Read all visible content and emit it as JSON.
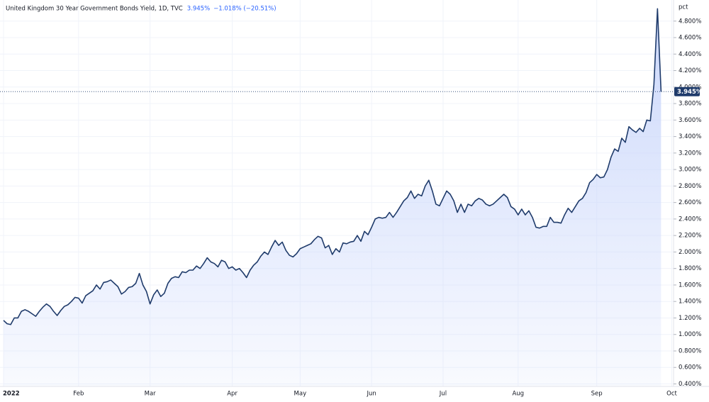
{
  "chart_data": {
    "type": "area",
    "title": "United Kingdom 30 Year Government Bonds Yield, 1D, TVC",
    "last": "3.945%",
    "change": "−1.018% (−20.51%)",
    "y_axis_label": "pct",
    "color": "#1f3b6b",
    "fill_color": "#c9d6fb",
    "grid": true,
    "categories": [
      "2022",
      null,
      null,
      null,
      null,
      null,
      null,
      null,
      null,
      null,
      null,
      null,
      null,
      null,
      null,
      null,
      null,
      null,
      null,
      null,
      null,
      "Feb",
      null,
      null,
      null,
      null,
      null,
      null,
      null,
      null,
      null,
      null,
      null,
      null,
      null,
      null,
      null,
      null,
      null,
      null,
      null,
      "Mar",
      null,
      null,
      null,
      null,
      null,
      null,
      null,
      null,
      null,
      null,
      null,
      null,
      null,
      null,
      null,
      null,
      null,
      null,
      null,
      null,
      null,
      null,
      "Apr",
      null,
      null,
      null,
      null,
      null,
      null,
      null,
      null,
      null,
      null,
      null,
      null,
      null,
      null,
      null,
      null,
      null,
      null,
      "May",
      null,
      null,
      null,
      null,
      null,
      null,
      null,
      null,
      null,
      null,
      null,
      null,
      null,
      null,
      null,
      null,
      null,
      null,
      null,
      "Jun",
      null,
      null,
      null,
      null,
      null,
      null,
      null,
      null,
      null,
      null,
      null,
      null,
      null,
      null,
      null,
      null,
      null,
      null,
      null,
      "Jul",
      null,
      null,
      null,
      null,
      null,
      null,
      null,
      null,
      null,
      null,
      null,
      null,
      null,
      null,
      null,
      null,
      null,
      null,
      null,
      null,
      "Aug",
      null,
      null,
      null,
      null,
      null,
      null,
      null,
      null,
      null,
      null,
      null,
      null,
      null,
      null,
      null,
      null,
      null,
      null,
      null,
      null,
      null,
      "Sep",
      null,
      null,
      null,
      null,
      null,
      null,
      null,
      null,
      null,
      null,
      null,
      null,
      null,
      null,
      null,
      null,
      null,
      null,
      null,
      null,
      "Oct"
    ],
    "values": [
      1.17,
      1.13,
      1.12,
      1.2,
      1.2,
      1.28,
      1.3,
      1.28,
      1.25,
      1.22,
      1.28,
      1.33,
      1.37,
      1.34,
      1.28,
      1.23,
      1.29,
      1.34,
      1.36,
      1.4,
      1.45,
      1.44,
      1.38,
      1.47,
      1.5,
      1.53,
      1.6,
      1.55,
      1.63,
      1.64,
      1.66,
      1.62,
      1.58,
      1.49,
      1.52,
      1.57,
      1.58,
      1.62,
      1.74,
      1.6,
      1.52,
      1.37,
      1.48,
      1.54,
      1.46,
      1.5,
      1.62,
      1.68,
      1.7,
      1.69,
      1.76,
      1.75,
      1.78,
      1.78,
      1.83,
      1.8,
      1.86,
      1.93,
      1.88,
      1.86,
      1.82,
      1.9,
      1.88,
      1.8,
      1.82,
      1.78,
      1.8,
      1.75,
      1.69,
      1.78,
      1.84,
      1.88,
      1.95,
      2.0,
      1.97,
      2.06,
      2.14,
      2.08,
      2.12,
      2.02,
      1.96,
      1.94,
      1.98,
      2.04,
      2.06,
      2.08,
      2.1,
      2.15,
      2.19,
      2.17,
      2.05,
      2.08,
      1.97,
      2.04,
      2.0,
      2.11,
      2.1,
      2.12,
      2.13,
      2.2,
      2.13,
      2.25,
      2.21,
      2.3,
      2.4,
      2.42,
      2.41,
      2.42,
      2.48,
      2.42,
      2.48,
      2.55,
      2.62,
      2.66,
      2.74,
      2.65,
      2.7,
      2.68,
      2.8,
      2.87,
      2.74,
      2.58,
      2.56,
      2.65,
      2.74,
      2.7,
      2.62,
      2.48,
      2.58,
      2.48,
      2.58,
      2.56,
      2.62,
      2.65,
      2.63,
      2.58,
      2.56,
      2.58,
      2.62,
      2.66,
      2.7,
      2.66,
      2.55,
      2.52,
      2.45,
      2.52,
      2.45,
      2.5,
      2.42,
      2.3,
      2.29,
      2.31,
      2.31,
      2.42,
      2.36,
      2.36,
      2.35,
      2.45,
      2.53,
      2.48,
      2.55,
      2.62,
      2.65,
      2.72,
      2.84,
      2.88,
      2.94,
      2.9,
      2.91,
      3.0,
      3.15,
      3.25,
      3.22,
      3.38,
      3.33,
      3.52,
      3.48,
      3.45,
      3.5,
      3.46,
      3.6,
      3.59,
      4.03,
      4.95,
      3.945,
      null,
      null,
      null
    ],
    "ylim": [
      0.37,
      5.03
    ],
    "yticks": [
      {
        "value": 0.4,
        "label": "0.400%"
      },
      {
        "value": 0.6,
        "label": "0.600%"
      },
      {
        "value": 0.8,
        "label": "0.800%"
      },
      {
        "value": 1.0,
        "label": "1.000%"
      },
      {
        "value": 1.2,
        "label": "1.200%"
      },
      {
        "value": 1.4,
        "label": "1.400%"
      },
      {
        "value": 1.6,
        "label": "1.600%"
      },
      {
        "value": 1.8,
        "label": "1.800%"
      },
      {
        "value": 2.0,
        "label": "2.000%"
      },
      {
        "value": 2.2,
        "label": "2.200%"
      },
      {
        "value": 2.4,
        "label": "2.400%"
      },
      {
        "value": 2.6,
        "label": "2.600%"
      },
      {
        "value": 2.8,
        "label": "2.800%"
      },
      {
        "value": 3.0,
        "label": "3.000%"
      },
      {
        "value": 3.2,
        "label": "3.200%"
      },
      {
        "value": 3.4,
        "label": "3.400%"
      },
      {
        "value": 3.6,
        "label": "3.600%"
      },
      {
        "value": 3.8,
        "label": "3.800%"
      },
      {
        "value": 4.0,
        "label": "4.000%"
      },
      {
        "value": 4.2,
        "label": "4.200%"
      },
      {
        "value": 4.4,
        "label": "4.400%"
      },
      {
        "value": 4.6,
        "label": "4.600%"
      },
      {
        "value": 4.8,
        "label": "4.800%"
      }
    ]
  }
}
